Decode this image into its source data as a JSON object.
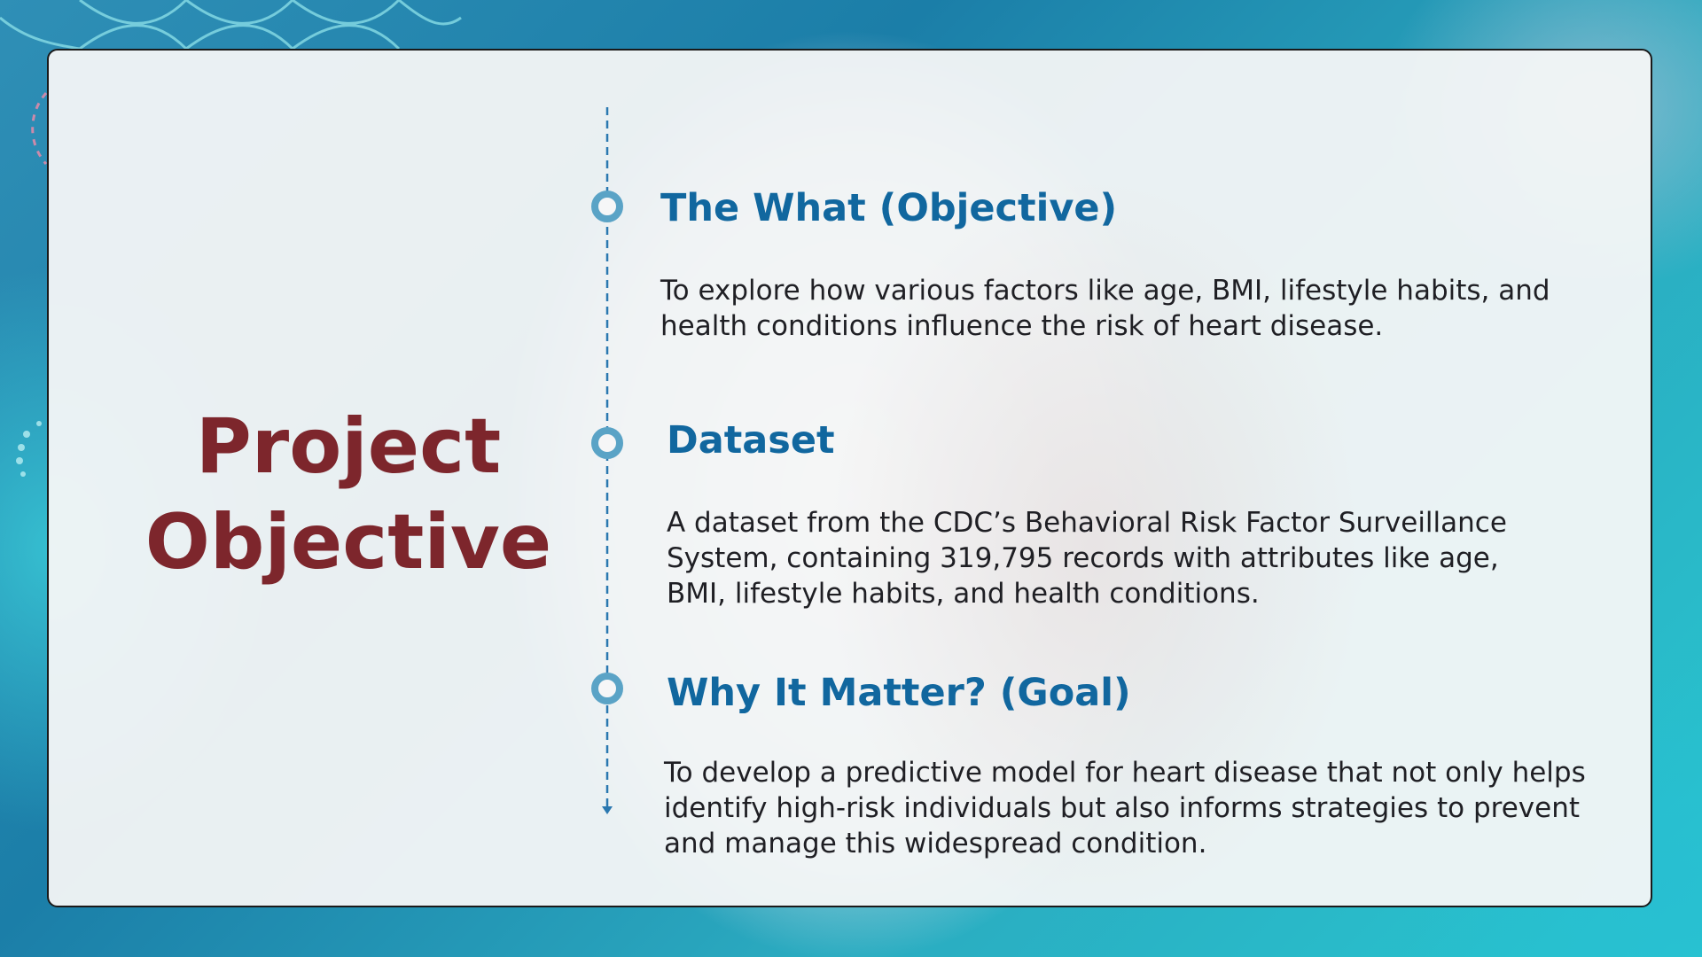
{
  "slide": {
    "title_line1": "Project",
    "title_line2": "Objective"
  },
  "sections": [
    {
      "heading": "The What (Objective)",
      "body": "To explore how various factors like age, BMI, lifestyle habits, and health conditions influence the risk of heart disease."
    },
    {
      "heading": "Dataset",
      "body": "A dataset from the CDC’s Behavioral Risk Factor Surveillance System, containing 319,795 records with attributes like age, BMI, lifestyle habits, and health conditions."
    },
    {
      "heading": "Why It Matter? (Goal)",
      "body": "To develop a predictive model for heart disease that not only helps identify high-risk individuals but also informs strategies to prevent and manage this widespread condition."
    }
  ],
  "colors": {
    "title": "#7d262c",
    "heading": "#11679f",
    "body_text": "#1f1f24",
    "timeline": "#2a78b0",
    "timeline_node": "#5aa3c6",
    "card_border": "#1a1a1a"
  },
  "icons": {
    "timeline_node": "circle-ring-icon",
    "timeline_end": "arrow-down-icon"
  }
}
